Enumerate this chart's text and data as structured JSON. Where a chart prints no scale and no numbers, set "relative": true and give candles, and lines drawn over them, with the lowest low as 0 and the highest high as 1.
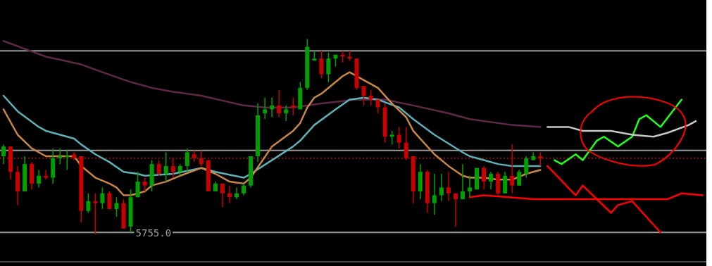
{
  "chart_data": {
    "type": "candlestick",
    "relative": true,
    "categories": [
      null,
      null,
      null,
      null,
      null,
      null,
      null,
      null,
      null,
      null,
      null,
      null,
      null,
      null,
      null,
      null,
      null,
      null,
      null,
      null,
      null,
      null,
      null,
      null,
      null,
      null,
      null,
      null,
      null,
      null,
      null,
      null,
      null,
      null,
      null,
      null,
      null,
      null,
      null,
      null,
      null,
      null,
      null,
      null,
      null,
      null,
      null,
      null,
      null,
      null,
      null,
      null,
      null,
      null,
      null,
      null,
      null,
      null,
      null,
      null,
      null,
      null,
      null,
      null,
      null,
      null,
      null,
      null,
      null,
      null,
      null,
      null,
      null,
      null,
      null,
      null,
      null,
      null,
      null,
      null,
      null,
      null,
      null,
      null,
      null,
      null,
      null,
      null,
      null,
      null,
      null,
      null,
      null,
      null,
      null,
      null,
      null,
      null,
      null,
      null
    ],
    "ohlc": [
      [
        0.4,
        0.46,
        0.36,
        0.45
      ],
      [
        0.45,
        0.45,
        0.28,
        0.32
      ],
      [
        0.32,
        0.35,
        0.15,
        0.22
      ],
      [
        0.22,
        0.4,
        0.22,
        0.36
      ],
      [
        0.36,
        0.37,
        0.23,
        0.26
      ],
      [
        0.26,
        0.33,
        0.24,
        0.3
      ],
      [
        0.3,
        0.33,
        0.28,
        0.29
      ],
      [
        0.29,
        0.44,
        0.26,
        0.39
      ],
      [
        0.39,
        0.44,
        0.36,
        0.4
      ],
      [
        0.397,
        0.43,
        0.33,
        0.404
      ],
      [
        0.41,
        0.42,
        0.38,
        0.39
      ],
      [
        0.4,
        0.4,
        0.06,
        0.12
      ],
      [
        0.12,
        0.21,
        0.11,
        0.17
      ],
      [
        0.17,
        0.21,
        0,
        0.16
      ],
      [
        0.16,
        0.24,
        0.13,
        0.21
      ],
      [
        0.21,
        0.22,
        0.13,
        0.13
      ],
      [
        0.13,
        0.19,
        0.09,
        0.16
      ],
      [
        0.16,
        0.18,
        0.03,
        0.03
      ],
      [
        0.04,
        0.23,
        0.01,
        0.19
      ],
      [
        0.19,
        0.32,
        0.19,
        0.27
      ],
      [
        0.27,
        0.29,
        0.22,
        0.25
      ],
      [
        0.25,
        0.38,
        0.22,
        0.36
      ],
      [
        0.36,
        0.38,
        0.3,
        0.31
      ],
      [
        0.31,
        0.42,
        0.27,
        0.35
      ],
      [
        0.35,
        0.39,
        0.29,
        0.32
      ],
      [
        0.32,
        0.36,
        0.3,
        0.35
      ],
      [
        0.35,
        0.44,
        0.32,
        0.42
      ],
      [
        0.41,
        0.43,
        0.37,
        0.39
      ],
      [
        0.39,
        0.43,
        0.35,
        0.36
      ],
      [
        0.38,
        0.38,
        0.22,
        0.22
      ],
      [
        0.22,
        0.27,
        0.22,
        0.26
      ],
      [
        0.26,
        0.26,
        0.14,
        0.21
      ],
      [
        0.21,
        0.25,
        0.16,
        0.19
      ],
      [
        0.19,
        0.24,
        0.18,
        0.21
      ],
      [
        0.21,
        0.26,
        0.2,
        0.25
      ],
      [
        0.25,
        0.4,
        0.24,
        0.4
      ],
      [
        0.4,
        0.67,
        0.37,
        0.61
      ],
      [
        0.62,
        0.7,
        0.59,
        0.64
      ],
      [
        0.64,
        0.7,
        0.6,
        0.66
      ],
      [
        0.66,
        0.74,
        0.6,
        0.62
      ],
      [
        0.62,
        0.66,
        0.58,
        0.64
      ],
      [
        0.66,
        0.7,
        0.61,
        0.65
      ],
      [
        0.64,
        0.78,
        0.64,
        0.75
      ],
      [
        0.75,
        1,
        0.74,
        0.96
      ],
      [
        0.89,
        0.94,
        0.89,
        0.9
      ],
      [
        0.9,
        0.94,
        0.8,
        0.82
      ],
      [
        0.82,
        0.93,
        0.78,
        0.9
      ],
      [
        0.9,
        0.92,
        0.86,
        0.92
      ],
      [
        0.92,
        0.94,
        0.88,
        0.91
      ],
      [
        0.91,
        0.94,
        0.89,
        0.9
      ],
      [
        0.9,
        0.9,
        0.74,
        0.75
      ],
      [
        0.76,
        0.76,
        0.66,
        0.71
      ],
      [
        0.71,
        0.74,
        0.66,
        0.69
      ],
      [
        0.69,
        0.69,
        0.62,
        0.65
      ],
      [
        0.65,
        0.67,
        0.47,
        0.5
      ],
      [
        0.5,
        0.53,
        0.46,
        0.51
      ],
      [
        0.51,
        0.55,
        0.44,
        0.47
      ],
      [
        0.47,
        0.55,
        0.38,
        0.39
      ],
      [
        0.4,
        0.4,
        0.16,
        0.22
      ],
      [
        0.22,
        0.36,
        0.18,
        0.32
      ],
      [
        0.32,
        0.33,
        0.11,
        0.16
      ],
      [
        0.16,
        0.31,
        0.1,
        0.2
      ],
      [
        0.2,
        0.31,
        0.17,
        0.24
      ],
      [
        0.24,
        0.32,
        0.17,
        0.21
      ],
      [
        0.21,
        0.21,
        0.04,
        0.18
      ],
      [
        0.18,
        0.36,
        0.18,
        0.22
      ],
      [
        0.22,
        0.3,
        0.19,
        0.24
      ],
      [
        0.23,
        0.34,
        0.23,
        0.34
      ],
      [
        0.34,
        0.35,
        0.23,
        0.27
      ],
      [
        0.27,
        0.32,
        0.23,
        0.31
      ],
      [
        0.31,
        0.32,
        0.2,
        0.21
      ],
      [
        0.21,
        0.32,
        0.21,
        0.3
      ],
      [
        0.3,
        0.46,
        0.21,
        0.25
      ],
      [
        0.25,
        0.33,
        0.25,
        0.32
      ],
      [
        0.31,
        0.4,
        0.29,
        0.39
      ],
      [
        0.38,
        0.42,
        0.38,
        0.4
      ],
      [
        0.4,
        0.42,
        0.35,
        0.39
      ],
      null,
      null,
      null,
      null,
      null,
      null,
      null,
      null,
      null,
      null,
      null,
      null,
      null,
      null,
      null,
      null,
      null,
      null,
      null,
      null,
      null,
      null,
      null
    ],
    "series": [
      {
        "type": "line",
        "color": "#c8864a",
        "values": [
          0.64,
          null,
          0.51,
          null,
          0.44,
          null,
          0.4,
          null,
          null,
          null,
          0.4,
          0.35,
          null,
          0.29,
          null,
          0.26,
          0.24,
          0.2,
          0.2,
          null,
          0.22,
          0.25,
          null,
          0.27,
          null,
          0.3,
          null,
          null,
          0.34,
          null,
          0.31,
          null,
          0.27,
          null,
          0.26,
          0.29,
          null,
          null,
          0.45,
          null,
          null,
          0.53,
          0.57,
          0.65,
          0.7,
          0.72,
          null,
          null,
          0.81,
          0.83,
          null,
          0.79,
          null,
          0.75,
          null,
          0.67,
          null,
          0.6,
          0.53,
          0.49,
          null,
          0.41,
          null,
          0.35,
          null,
          0.3,
          0.29,
          null,
          0.29,
          null,
          0.28,
          null,
          0.28,
          null,
          0.31,
          null,
          0.33,
          null,
          null,
          null,
          null,
          null,
          null,
          null,
          null,
          null,
          null,
          null,
          null,
          null,
          null,
          null,
          null,
          null,
          null,
          null,
          null,
          null,
          null,
          null
        ]
      },
      {
        "type": "line",
        "color": "#5fb1b6",
        "values": [
          0.71,
          null,
          0.63,
          null,
          null,
          0.55,
          0.53,
          null,
          null,
          null,
          0.49,
          0.46,
          null,
          0.41,
          null,
          0.37,
          null,
          0.32,
          null,
          0.31,
          0.3,
          null,
          null,
          null,
          0.31,
          null,
          null,
          null,
          0.34,
          null,
          0.32,
          null,
          null,
          null,
          0.29,
          0.31,
          null,
          null,
          0.38,
          null,
          null,
          0.45,
          0.48,
          null,
          0.56,
          null,
          null,
          0.64,
          null,
          0.69,
          null,
          0.7,
          null,
          0.69,
          null,
          null,
          0.65,
          null,
          0.59,
          null,
          null,
          0.51,
          null,
          null,
          null,
          0.42,
          0.4,
          null,
          0.38,
          null,
          0.36,
          null,
          0.35,
          null,
          0.35,
          null,
          0.35,
          null,
          null,
          null,
          null,
          null,
          null,
          null,
          null,
          null,
          null,
          null,
          null,
          null,
          null,
          null,
          null,
          null,
          null,
          null,
          null,
          null,
          null,
          null
        ]
      },
      {
        "type": "line",
        "color": "#5c2a47",
        "values": [
          0.99,
          null,
          null,
          0.95,
          null,
          null,
          0.91,
          null,
          null,
          null,
          null,
          0.87,
          null,
          null,
          0.83,
          null,
          null,
          null,
          0.78,
          null,
          null,
          0.75,
          null,
          null,
          0.73,
          null,
          null,
          null,
          0.71,
          null,
          null,
          null,
          null,
          null,
          0.66,
          null,
          null,
          0.65,
          null,
          null,
          null,
          0.65,
          null,
          null,
          null,
          0.67,
          null,
          null,
          null,
          null,
          0.69,
          null,
          null,
          null,
          0.69,
          null,
          null,
          null,
          0.66,
          null,
          null,
          null,
          null,
          0.62,
          null,
          null,
          0.59,
          null,
          null,
          null,
          null,
          null,
          0.56,
          null,
          null,
          null,
          0.55,
          null,
          null,
          null,
          null,
          null,
          null,
          null,
          null,
          null,
          null,
          null,
          null,
          null,
          null,
          null,
          null,
          null,
          null,
          null,
          null,
          null,
          null,
          null
        ]
      },
      {
        "type": "line",
        "color": "#c8c8c8",
        "values": [
          null,
          null,
          null,
          null,
          null,
          null,
          null,
          null,
          null,
          null,
          null,
          null,
          null,
          null,
          null,
          null,
          null,
          null,
          null,
          null,
          null,
          null,
          null,
          null,
          null,
          null,
          null,
          null,
          null,
          null,
          null,
          null,
          null,
          null,
          null,
          null,
          null,
          null,
          null,
          null,
          null,
          null,
          null,
          null,
          null,
          null,
          null,
          null,
          null,
          null,
          null,
          null,
          null,
          null,
          null,
          null,
          null,
          null,
          null,
          null,
          null,
          null,
          null,
          null,
          null,
          null,
          null,
          null,
          null,
          null,
          null,
          null,
          null,
          null,
          null,
          null,
          null,
          0.55,
          null,
          null,
          0.55,
          null,
          0.53,
          null,
          null,
          null,
          0.53,
          null,
          null,
          0.51,
          null,
          null,
          0.5,
          null,
          0.52,
          null,
          null,
          0.56,
          0.58,
          null
        ]
      },
      {
        "type": "line",
        "color": "#1eff1e",
        "values": [
          null,
          null,
          null,
          null,
          null,
          null,
          null,
          null,
          null,
          null,
          null,
          null,
          null,
          null,
          null,
          null,
          null,
          null,
          null,
          null,
          null,
          null,
          null,
          null,
          null,
          null,
          null,
          null,
          null,
          null,
          null,
          null,
          null,
          null,
          null,
          null,
          null,
          null,
          null,
          null,
          null,
          null,
          null,
          null,
          null,
          null,
          null,
          null,
          null,
          null,
          null,
          null,
          null,
          null,
          null,
          null,
          null,
          null,
          null,
          null,
          null,
          null,
          null,
          null,
          null,
          null,
          null,
          null,
          null,
          null,
          null,
          null,
          null,
          null,
          null,
          null,
          null,
          null,
          0.38,
          0.36,
          null,
          0.41,
          0.38,
          null,
          0.48,
          0.5,
          null,
          0.45,
          null,
          0.5,
          0.59,
          0.61,
          null,
          0.55,
          null,
          null,
          0.69,
          null,
          null,
          null
        ]
      },
      {
        "type": "line",
        "color": "#ff0000",
        "values": [
          null,
          null,
          null,
          null,
          null,
          null,
          null,
          null,
          null,
          null,
          null,
          null,
          null,
          null,
          null,
          null,
          null,
          null,
          null,
          null,
          null,
          null,
          null,
          null,
          null,
          null,
          null,
          null,
          null,
          null,
          null,
          null,
          null,
          null,
          null,
          null,
          null,
          null,
          null,
          null,
          null,
          null,
          null,
          null,
          null,
          null,
          null,
          null,
          null,
          null,
          null,
          null,
          null,
          null,
          null,
          null,
          null,
          null,
          null,
          null,
          null,
          null,
          null,
          null,
          null,
          null,
          0.19,
          null,
          0.2,
          null,
          null,
          null,
          null,
          null,
          null,
          0.18,
          null,
          null,
          null,
          null,
          null,
          null,
          null,
          null,
          null,
          null,
          0.18,
          null,
          null,
          null,
          null,
          null,
          null,
          null,
          0.18,
          null,
          0.21,
          null,
          null,
          0.2
        ]
      },
      {
        "type": "line",
        "color": "#ff0000",
        "values": [
          null,
          null,
          null,
          null,
          null,
          null,
          null,
          null,
          null,
          null,
          null,
          null,
          null,
          null,
          null,
          null,
          null,
          null,
          null,
          null,
          null,
          null,
          null,
          null,
          null,
          null,
          null,
          null,
          null,
          null,
          null,
          null,
          null,
          null,
          null,
          null,
          null,
          null,
          null,
          null,
          null,
          null,
          null,
          null,
          null,
          null,
          null,
          null,
          null,
          null,
          null,
          null,
          null,
          null,
          null,
          null,
          null,
          null,
          null,
          null,
          null,
          null,
          null,
          null,
          null,
          null,
          null,
          null,
          null,
          null,
          null,
          null,
          null,
          null,
          null,
          null,
          null,
          0.35,
          null,
          null,
          null,
          0.2,
          0.25,
          null,
          null,
          null,
          0.11,
          0.15,
          null,
          0.17,
          null,
          null,
          null,
          0.01,
          null,
          null,
          null,
          null,
          null,
          null
        ]
      }
    ],
    "ref_lines": [
      {
        "axis": "y",
        "value": 0.94,
        "color": "#9a9a9a",
        "line_style": "solid"
      },
      {
        "axis": "y",
        "value": 0.43,
        "color": "#9a9a9a",
        "line_style": "solid"
      },
      {
        "axis": "y",
        "value": 0.01,
        "color": "#9a9a9a",
        "line_style": "solid"
      },
      {
        "axis": "y",
        "value": -0.14,
        "color": "#4a4a4a",
        "line_style": "solid"
      },
      {
        "axis": "y",
        "value": 0.39,
        "color": "#8b1010",
        "line_style": "dotted"
      }
    ],
    "annotations": [
      "5755.0"
    ]
  }
}
